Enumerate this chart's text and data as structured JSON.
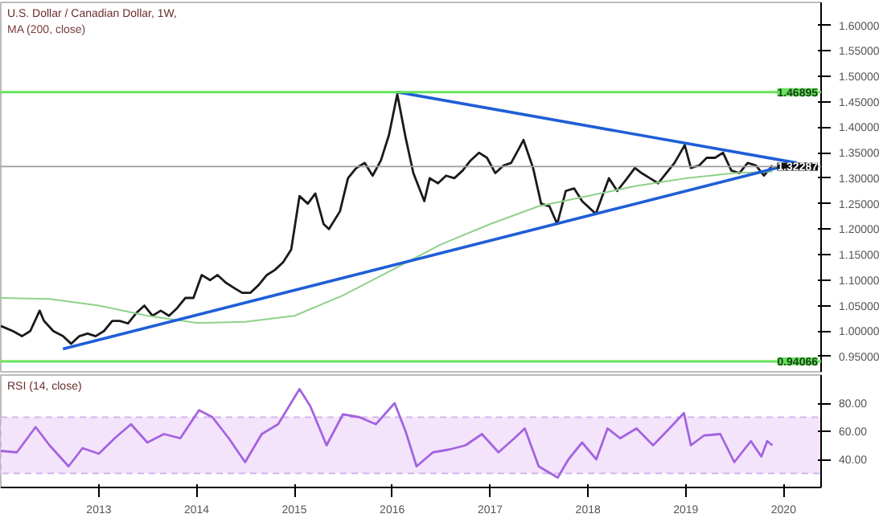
{
  "chart_data": [
    {
      "type": "line",
      "title": "U.S. Dollar / Canadian Dollar, 1W,",
      "annotations": [
        "MA (200, close)"
      ],
      "xlim": [
        "2012-01-01",
        "2020-05-20"
      ],
      "ylim": [
        0.92,
        1.645
      ],
      "yticks": [
        {
          "value": 0.95,
          "label": "0.95000"
        },
        {
          "value": 1.0,
          "label": "1.00000"
        },
        {
          "value": 1.05,
          "label": "1.05000"
        },
        {
          "value": 1.1,
          "label": "1.10000"
        },
        {
          "value": 1.15,
          "label": "1.15000"
        },
        {
          "value": 1.2,
          "label": "1.20000"
        },
        {
          "value": 1.25,
          "label": "1.25000"
        },
        {
          "value": 1.3,
          "label": "1.30000"
        },
        {
          "value": 1.35,
          "label": "1.35000"
        },
        {
          "value": 1.4,
          "label": "1.40000"
        },
        {
          "value": 1.45,
          "label": "1.45000"
        },
        {
          "value": 1.5,
          "label": "1.50000"
        },
        {
          "value": 1.55,
          "label": "1.55000"
        },
        {
          "value": 1.6,
          "label": "1.60000"
        }
      ],
      "tick_labels": "y",
      "grid": false,
      "ref_lines": [
        {
          "axis": "y",
          "value": 1.46895,
          "label": "1.46895",
          "color": "#66e35a"
        },
        {
          "axis": "y",
          "value": 0.94066,
          "label": "0.94066",
          "color": "#66e35a"
        },
        {
          "axis": "y",
          "value": 1.32287,
          "label": "1.32287",
          "color": "#9e9e9e"
        }
      ],
      "series": [
        {
          "color": "#1a1a1a",
          "x": [
            "2012-01-01",
            "2012-02-15",
            "2012-03-20",
            "2012-04-20",
            "2012-05-25",
            "2012-06-10",
            "2012-07-15",
            "2012-08-20",
            "2012-09-20",
            "2012-10-20",
            "2012-11-20",
            "2012-12-20",
            "2013-01-20",
            "2013-02-20",
            "2013-03-20",
            "2013-04-20",
            "2013-05-20",
            "2013-06-20",
            "2013-07-20",
            "2013-08-20",
            "2013-09-20",
            "2013-10-20",
            "2013-11-20",
            "2013-12-20",
            "2014-01-20",
            "2014-02-20",
            "2014-03-20",
            "2014-04-20",
            "2014-05-20",
            "2014-06-20",
            "2014-07-20",
            "2014-08-20",
            "2014-09-20",
            "2014-10-20",
            "2014-11-20",
            "2014-12-20",
            "2015-01-20",
            "2015-02-20",
            "2015-03-20",
            "2015-04-20",
            "2015-05-10",
            "2015-06-20",
            "2015-07-20",
            "2015-08-20",
            "2015-09-20",
            "2015-10-20",
            "2015-11-20",
            "2015-12-20",
            "2016-01-20",
            "2016-02-20",
            "2016-03-20",
            "2016-04-30",
            "2016-05-20",
            "2016-06-20",
            "2016-07-20",
            "2016-08-20",
            "2016-09-20",
            "2016-10-20",
            "2016-11-20",
            "2016-12-20",
            "2017-01-20",
            "2017-02-20",
            "2017-03-20",
            "2017-04-20",
            "2017-05-05",
            "2017-06-10",
            "2017-07-10",
            "2017-08-10",
            "2017-09-08",
            "2017-10-10",
            "2017-11-10",
            "2017-12-10",
            "2018-01-30",
            "2018-02-20",
            "2018-03-20",
            "2018-04-20",
            "2018-05-20",
            "2018-06-25",
            "2018-07-20",
            "2018-08-20",
            "2018-09-20",
            "2018-10-20",
            "2018-11-20",
            "2018-12-28",
            "2019-01-20",
            "2019-02-20",
            "2019-03-20",
            "2019-04-20",
            "2019-05-20",
            "2019-06-20",
            "2019-07-20",
            "2019-08-20",
            "2019-09-20",
            "2019-10-20",
            "2019-11-20"
          ],
          "values": [
            1.01,
            1.0,
            0.99,
            1.0,
            1.04,
            1.02,
            1.0,
            0.99,
            0.975,
            0.99,
            0.995,
            0.99,
            1.0,
            1.02,
            1.02,
            1.015,
            1.035,
            1.05,
            1.03,
            1.04,
            1.03,
            1.045,
            1.065,
            1.065,
            1.11,
            1.1,
            1.11,
            1.095,
            1.085,
            1.075,
            1.075,
            1.09,
            1.11,
            1.12,
            1.135,
            1.16,
            1.265,
            1.25,
            1.27,
            1.21,
            1.2,
            1.235,
            1.3,
            1.32,
            1.33,
            1.305,
            1.335,
            1.385,
            1.465,
            1.38,
            1.31,
            1.255,
            1.3,
            1.29,
            1.305,
            1.3,
            1.315,
            1.335,
            1.35,
            1.34,
            1.31,
            1.325,
            1.33,
            1.36,
            1.375,
            1.32,
            1.25,
            1.245,
            1.21,
            1.275,
            1.28,
            1.255,
            1.23,
            1.26,
            1.3,
            1.275,
            1.295,
            1.32,
            1.31,
            1.3,
            1.29,
            1.31,
            1.33,
            1.365,
            1.32,
            1.325,
            1.34,
            1.34,
            1.35,
            1.315,
            1.31,
            1.33,
            1.325,
            1.305,
            1.325
          ]
        },
        {
          "color": "#8fd18a",
          "x": [
            "2012-01-01",
            "2012-07-01",
            "2013-01-01",
            "2013-07-01",
            "2014-01-01",
            "2014-07-01",
            "2015-01-01",
            "2015-07-01",
            "2016-01-01",
            "2016-07-01",
            "2017-01-01",
            "2017-07-01",
            "2018-01-01",
            "2018-07-01",
            "2019-01-01",
            "2019-07-01",
            "2019-11-20"
          ],
          "values": [
            1.065,
            1.063,
            1.05,
            1.03,
            1.016,
            1.018,
            1.03,
            1.07,
            1.12,
            1.17,
            1.21,
            1.245,
            1.265,
            1.285,
            1.3,
            1.31,
            1.313
          ]
        },
        {
          "color": "#1f5ed6",
          "x": [
            "2012-08-20",
            "2020-02-20"
          ],
          "values": [
            0.965,
            1.33
          ]
        },
        {
          "color": "#1f5ed6",
          "x": [
            "2016-01-20",
            "2020-02-20"
          ],
          "values": [
            1.469,
            1.33
          ]
        }
      ]
    },
    {
      "type": "line",
      "annotations": [
        "RSI (14, close)"
      ],
      "xlim": [
        "2012-01-01",
        "2020-05-20"
      ],
      "ylim": [
        20,
        100
      ],
      "xticks": [
        "2013",
        "2014",
        "2015",
        "2016",
        "2017",
        "2018",
        "2019",
        "2020"
      ],
      "yticks": [
        {
          "value": 40,
          "label": "40.00"
        },
        {
          "value": 60,
          "label": "60.00"
        },
        {
          "value": 80,
          "label": "80.00"
        }
      ],
      "grid": false,
      "bands": [
        {
          "axis": "y",
          "from": 30,
          "to": 70,
          "color": "#f3e4fc"
        }
      ],
      "series": [
        {
          "color": "#a463e0",
          "x": [
            "2012-01-01",
            "2012-03-01",
            "2012-05-10",
            "2012-07-01",
            "2012-09-10",
            "2012-11-01",
            "2013-01-01",
            "2013-03-01",
            "2013-05-01",
            "2013-07-01",
            "2013-09-01",
            "2013-11-01",
            "2014-01-10",
            "2014-03-01",
            "2014-05-01",
            "2014-07-01",
            "2014-09-01",
            "2014-11-01",
            "2015-01-20",
            "2015-03-01",
            "2015-05-01",
            "2015-07-01",
            "2015-09-01",
            "2015-11-01",
            "2016-01-10",
            "2016-02-20",
            "2016-04-01",
            "2016-06-01",
            "2016-08-01",
            "2016-10-01",
            "2016-12-01",
            "2017-02-01",
            "2017-04-01",
            "2017-05-10",
            "2017-07-01",
            "2017-09-10",
            "2017-10-20",
            "2017-12-10",
            "2018-02-01",
            "2018-03-15",
            "2018-05-01",
            "2018-07-01",
            "2018-09-01",
            "2018-11-01",
            "2018-12-25",
            "2019-01-20",
            "2019-03-10",
            "2019-05-10",
            "2019-07-01",
            "2019-09-01",
            "2019-10-10",
            "2019-11-01",
            "2019-11-20"
          ],
          "values": [
            46,
            45,
            63,
            50,
            35,
            48,
            44,
            55,
            65,
            52,
            58,
            55,
            75,
            70,
            55,
            38,
            58,
            65,
            90,
            78,
            50,
            72,
            70,
            65,
            80,
            60,
            35,
            45,
            47,
            50,
            58,
            45,
            55,
            62,
            35,
            27,
            40,
            52,
            40,
            62,
            55,
            62,
            50,
            62,
            73,
            50,
            57,
            58,
            38,
            53,
            42,
            53,
            50
          ]
        }
      ]
    }
  ]
}
